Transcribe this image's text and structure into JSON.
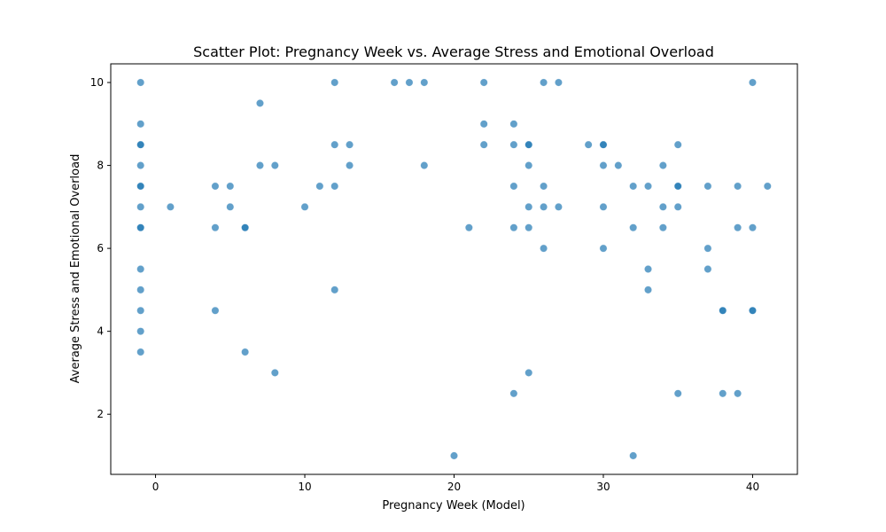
{
  "chart_data": {
    "type": "scatter",
    "title": "Scatter Plot: Pregnancy Week vs. Average Stress and Emotional Overload",
    "xlabel": "Pregnancy Week (Model)",
    "ylabel": "Average Stress and Emotional Overload",
    "xlim": [
      -3,
      43
    ],
    "ylim": [
      0.55,
      10.45
    ],
    "xticks": [
      0,
      10,
      20,
      30,
      40
    ],
    "yticks": [
      2,
      4,
      6,
      8,
      10
    ],
    "grid": false,
    "color": "#1f77b4",
    "points": [
      [
        -1,
        10
      ],
      [
        -1,
        9
      ],
      [
        -1,
        8.5
      ],
      [
        -1,
        8.5
      ],
      [
        -1,
        8
      ],
      [
        -1,
        7.5
      ],
      [
        -1,
        7.5
      ],
      [
        -1,
        7
      ],
      [
        -1,
        6.5
      ],
      [
        -1,
        6.5
      ],
      [
        -1,
        5.5
      ],
      [
        -1,
        5
      ],
      [
        -1,
        4.5
      ],
      [
        -1,
        4
      ],
      [
        -1,
        3.5
      ],
      [
        1,
        7
      ],
      [
        4,
        7.5
      ],
      [
        4,
        6.5
      ],
      [
        4,
        4.5
      ],
      [
        5,
        7.5
      ],
      [
        5,
        7
      ],
      [
        6,
        6.5
      ],
      [
        6,
        6.5
      ],
      [
        6,
        3.5
      ],
      [
        7,
        9.5
      ],
      [
        7,
        8
      ],
      [
        8,
        8
      ],
      [
        8,
        3
      ],
      [
        10,
        7
      ],
      [
        11,
        7.5
      ],
      [
        12,
        10
      ],
      [
        12,
        8.5
      ],
      [
        12,
        7.5
      ],
      [
        12,
        5
      ],
      [
        13,
        8.5
      ],
      [
        13,
        8
      ],
      [
        16,
        10
      ],
      [
        17,
        10
      ],
      [
        18,
        10
      ],
      [
        18,
        8
      ],
      [
        20,
        1
      ],
      [
        21,
        6.5
      ],
      [
        22,
        10
      ],
      [
        22,
        9
      ],
      [
        22,
        8.5
      ],
      [
        24,
        9
      ],
      [
        24,
        8.5
      ],
      [
        24,
        7.5
      ],
      [
        24,
        6.5
      ],
      [
        24,
        2.5
      ],
      [
        25,
        8.5
      ],
      [
        25,
        8.5
      ],
      [
        25,
        8
      ],
      [
        25,
        7
      ],
      [
        25,
        6.5
      ],
      [
        25,
        3
      ],
      [
        26,
        10
      ],
      [
        26,
        7.5
      ],
      [
        26,
        7
      ],
      [
        26,
        6
      ],
      [
        27,
        10
      ],
      [
        27,
        7
      ],
      [
        29,
        8.5
      ],
      [
        30,
        8.5
      ],
      [
        30,
        8.5
      ],
      [
        30,
        8
      ],
      [
        30,
        7
      ],
      [
        30,
        6
      ],
      [
        31,
        8
      ],
      [
        32,
        7.5
      ],
      [
        32,
        6.5
      ],
      [
        32,
        1
      ],
      [
        33,
        7.5
      ],
      [
        33,
        5.5
      ],
      [
        33,
        5
      ],
      [
        34,
        8
      ],
      [
        34,
        7
      ],
      [
        34,
        6.5
      ],
      [
        35,
        8.5
      ],
      [
        35,
        7.5
      ],
      [
        35,
        7.5
      ],
      [
        35,
        7
      ],
      [
        35,
        2.5
      ],
      [
        37,
        7.5
      ],
      [
        37,
        6
      ],
      [
        37,
        5.5
      ],
      [
        38,
        4.5
      ],
      [
        38,
        4.5
      ],
      [
        38,
        2.5
      ],
      [
        39,
        7.5
      ],
      [
        39,
        6.5
      ],
      [
        39,
        2.5
      ],
      [
        40,
        10
      ],
      [
        40,
        6.5
      ],
      [
        40,
        4.5
      ],
      [
        40,
        4.5
      ],
      [
        41,
        7.5
      ]
    ]
  }
}
